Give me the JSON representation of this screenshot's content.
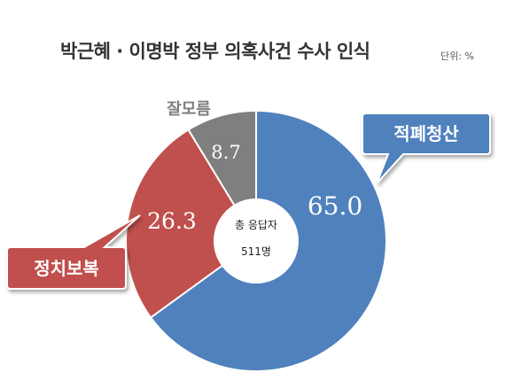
{
  "header": {
    "title": "박근혜 · 이명박 정부 의혹사건 수사 인식",
    "unit": "단위: %"
  },
  "chart_data": {
    "type": "pie",
    "donut": true,
    "categories": [
      "적폐청산",
      "정치보복",
      "잘모름"
    ],
    "values": [
      65.0,
      26.3,
      8.7
    ],
    "value_labels": [
      "65.0",
      "26.3",
      "8.7"
    ],
    "colors": [
      "#4f81bd",
      "#c0504d",
      "#7f7f7f"
    ],
    "center_text": [
      "총 응답자",
      "511명"
    ]
  }
}
